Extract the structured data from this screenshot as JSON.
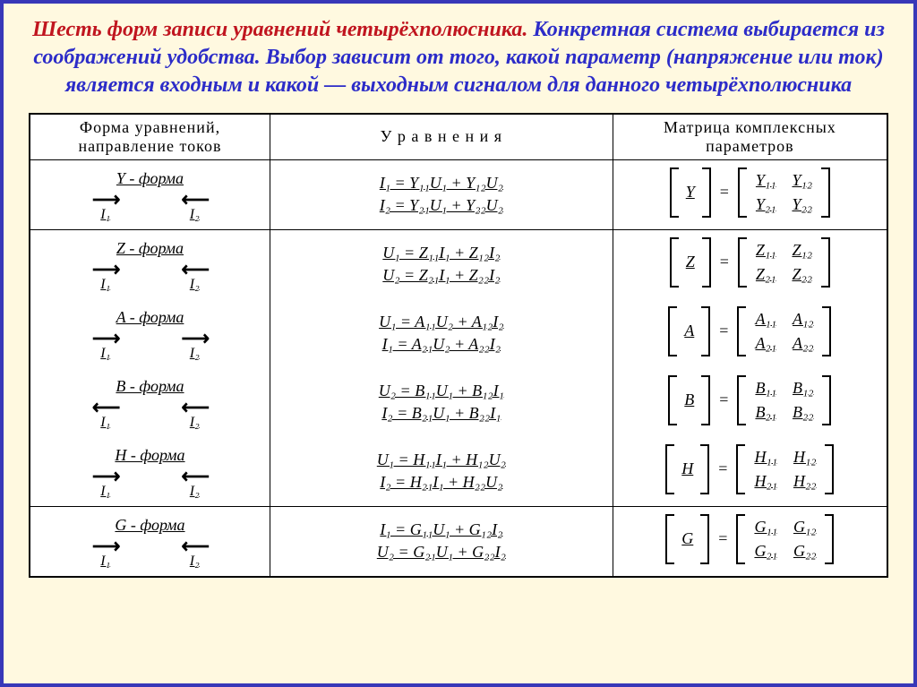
{
  "heading": {
    "line1_red": "Шесть форм записи уравнений четырёхполюсника.",
    "rest": "Конкретная система выбирается из соображений удобства. Выбор зависит от того, какой параметр (напряжение или ток) является входным и какой — выходным сигналом для данного четырёхполюсника"
  },
  "headers": {
    "col1": "Форма уравнений, направление токов",
    "col2": "У р а в н е н и я",
    "col3": "Матрица комплексных параметров"
  },
  "forms": [
    {
      "name": "Y - форма",
      "i1_dir": "right",
      "i2_dir": "left",
      "eq1": "I₁ = Y₁₁U₁ + Y₁₂U₂",
      "eq2": "I₂ = Y₂₁U₁ + Y₂₂U₂",
      "mat": "Y",
      "m": [
        "Y₁₁",
        "Y₁₂",
        "Y₂₁",
        "Y₂₂"
      ]
    },
    {
      "name": "Z - форма",
      "i1_dir": "right",
      "i2_dir": "left",
      "eq1": "U₁ = Z₁₁I₁ + Z₁₂I₂",
      "eq2": "U₂ = Z₂₁I₁ + Z₂₂I₂",
      "mat": "Z",
      "m": [
        "Z₁₁",
        "Z₁₂",
        "Z₂₁",
        "Z₂₂"
      ]
    },
    {
      "name": "A - форма",
      "i1_dir": "right",
      "i2_dir": "right",
      "eq1": "U₁ = A₁₁U₂ + A₁₂I₂",
      "eq2": "I₁ = A₂₁U₂ + A₂₂I₂",
      "mat": "A",
      "m": [
        "A₁₁",
        "A₁₂",
        "A₂₁",
        "A₂₂"
      ]
    },
    {
      "name": "B - форма",
      "i1_dir": "left",
      "i2_dir": "left",
      "eq1": "U₂ = B₁₁U₁ + B₁₂I₁",
      "eq2": "I₂ = B₂₁U₁ + B₂₂I₁",
      "mat": "B",
      "m": [
        "B₁₁",
        "B₁₂",
        "B₂₁",
        "B₂₂"
      ]
    },
    {
      "name": "H - форма",
      "i1_dir": "right",
      "i2_dir": "left",
      "eq1": "U₁ = H₁₁I₁ + H₁₂U₂",
      "eq2": "I₂ = H₂₁I₁ + H₂₂U₂",
      "mat": "H",
      "m": [
        "H₁₁",
        "H₁₂",
        "H₂₁",
        "H₂₂"
      ]
    },
    {
      "name": "G - форма",
      "i1_dir": "right",
      "i2_dir": "left",
      "eq1": "I₁ = G₁₁U₁ + G₁₂I₂",
      "eq2": "U₂ = G₂₁U₁ + G₂₂I₂",
      "mat": "G",
      "m": [
        "G₁₁",
        "G₁₂",
        "G₂₁",
        "G₂₂"
      ]
    }
  ],
  "currents": {
    "i1": "I₁",
    "i2": "I₂"
  },
  "groups": [
    [
      0
    ],
    [
      1,
      2,
      3,
      4
    ],
    [
      5
    ]
  ],
  "colors": {
    "page_bg": "#fff9e0",
    "border": "#3838b8",
    "red": "#c0151f",
    "blue": "#2c2cc8",
    "black": "#000000",
    "table_bg": "#ffffff"
  },
  "typography": {
    "heading_fontsize": 24,
    "body_fontsize": 18
  }
}
